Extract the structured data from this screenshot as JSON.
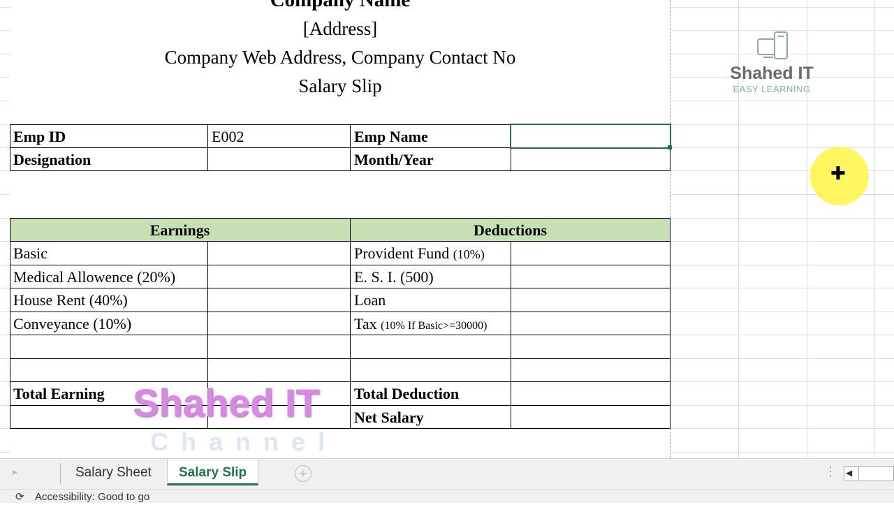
{
  "header": {
    "company_name": "Company Name",
    "address": "[Address]",
    "contact": "Company Web Address, Company Contact No",
    "title": "Salary Slip"
  },
  "info": {
    "emp_id_label": "Emp ID",
    "emp_id_value": "E002",
    "emp_name_label": "Emp Name",
    "emp_name_value": "",
    "designation_label": "Designation",
    "designation_value": "",
    "month_year_label": "Month/Year",
    "month_year_value": ""
  },
  "earnings": {
    "header": "Earnings",
    "items": [
      "Basic",
      "Medical Allowence (20%)",
      "House Rent (40%)",
      "Conveyance (10%)"
    ],
    "total_label": "Total Earning"
  },
  "deductions": {
    "header": "Deductions",
    "items": [
      {
        "label": "Provident Fund",
        "note": "(10%)"
      },
      {
        "label": "E. S. I. (500)",
        "note": ""
      },
      {
        "label": "Loan",
        "note": ""
      },
      {
        "label": "Tax",
        "note": "(10% If Basic>=30000)"
      }
    ],
    "total_label": "Total Deduction",
    "net_label": "Net Salary"
  },
  "logo": {
    "name": "Shahed IT",
    "tagline": "EASY LEARNING"
  },
  "watermark": {
    "name": "Shahed IT",
    "sub": "Channel"
  },
  "tabs": {
    "items": [
      "Salary Sheet",
      "Salary Slip"
    ],
    "active": "Salary Slip"
  },
  "status": {
    "accessibility": "Accessibility: Good to go"
  },
  "colors": {
    "header_fill": "#c6e0b4",
    "selection": "#217346",
    "active_tab": "#217346"
  }
}
